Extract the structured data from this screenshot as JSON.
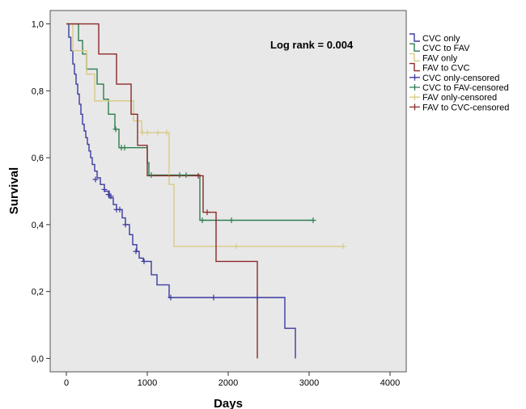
{
  "chart_data": {
    "type": "line",
    "xlabel": "Days",
    "ylabel": "Survival",
    "xlim": [
      -200,
      4200
    ],
    "ylim": [
      -0.04,
      1.04
    ],
    "xticks": [
      0,
      1000,
      2000,
      3000,
      4000
    ],
    "xtick_labels": [
      "0",
      "1000",
      "2000",
      "3000",
      "4000"
    ],
    "yticks": [
      0.0,
      0.2,
      0.4,
      0.6,
      0.8,
      1.0
    ],
    "ytick_labels": [
      "0,0",
      "0,2",
      "0,4",
      "0,6",
      "0,8",
      "1,0"
    ],
    "annotation": "Log rank = 0.004",
    "legend_position": "right",
    "grid": false,
    "background": "#e8e8e8",
    "series": [
      {
        "name": "CVC only",
        "color": "#3b3ba0",
        "steps": [
          [
            0,
            1.0
          ],
          [
            30,
            0.96
          ],
          [
            55,
            0.92
          ],
          [
            80,
            0.88
          ],
          [
            100,
            0.85
          ],
          [
            120,
            0.82
          ],
          [
            140,
            0.79
          ],
          [
            160,
            0.76
          ],
          [
            180,
            0.73
          ],
          [
            200,
            0.7
          ],
          [
            220,
            0.68
          ],
          [
            240,
            0.66
          ],
          [
            260,
            0.64
          ],
          [
            280,
            0.62
          ],
          [
            300,
            0.6
          ],
          [
            320,
            0.58
          ],
          [
            350,
            0.56
          ],
          [
            380,
            0.54
          ],
          [
            420,
            0.52
          ],
          [
            470,
            0.5
          ],
          [
            530,
            0.48
          ],
          [
            580,
            0.46
          ],
          [
            620,
            0.445
          ],
          [
            690,
            0.42
          ],
          [
            730,
            0.4
          ],
          [
            780,
            0.37
          ],
          [
            820,
            0.34
          ],
          [
            870,
            0.32
          ],
          [
            900,
            0.3
          ],
          [
            950,
            0.29
          ],
          [
            1050,
            0.25
          ],
          [
            1120,
            0.22
          ],
          [
            1270,
            0.182
          ],
          [
            2700,
            0.09
          ],
          [
            2830,
            0.0
          ]
        ],
        "end": 2830
      },
      {
        "name": "CVC to FAV",
        "color": "#2e7d4f",
        "steps": [
          [
            0,
            1.0
          ],
          [
            150,
            0.95
          ],
          [
            200,
            0.91
          ],
          [
            250,
            0.865
          ],
          [
            380,
            0.82
          ],
          [
            460,
            0.775
          ],
          [
            520,
            0.73
          ],
          [
            600,
            0.685
          ],
          [
            650,
            0.63
          ],
          [
            1000,
            0.585
          ],
          [
            1020,
            0.548
          ],
          [
            1650,
            0.413
          ]
        ],
        "end": 3050
      },
      {
        "name": "FAV only",
        "color": "#d8cb86",
        "steps": [
          [
            0,
            1.0
          ],
          [
            80,
            0.92
          ],
          [
            250,
            0.85
          ],
          [
            350,
            0.77
          ],
          [
            830,
            0.71
          ],
          [
            930,
            0.675
          ],
          [
            1270,
            0.52
          ],
          [
            1330,
            0.335
          ]
        ],
        "end": 3420
      },
      {
        "name": "FAV to CVC",
        "color": "#8b2a2a",
        "steps": [
          [
            0,
            1.0
          ],
          [
            200,
            1.0
          ],
          [
            400,
            0.91
          ],
          [
            620,
            0.82
          ],
          [
            800,
            0.73
          ],
          [
            880,
            0.637
          ],
          [
            1000,
            0.546
          ],
          [
            1690,
            0.437
          ],
          [
            1850,
            0.29
          ],
          [
            2360,
            0.0
          ]
        ],
        "end": 2360
      }
    ],
    "censored": [
      {
        "name": "CVC only-censored",
        "color": "#3b3ba0",
        "points": [
          [
            360,
            0.535
          ],
          [
            470,
            0.505
          ],
          [
            520,
            0.49
          ],
          [
            550,
            0.485
          ],
          [
            620,
            0.445
          ],
          [
            660,
            0.445
          ],
          [
            730,
            0.4
          ],
          [
            860,
            0.32
          ],
          [
            960,
            0.29
          ],
          [
            1290,
            0.182
          ],
          [
            1820,
            0.182
          ],
          [
            2360,
            0.182
          ]
        ]
      },
      {
        "name": "CVC to FAV-censored",
        "color": "#2e7d4f",
        "points": [
          [
            610,
            0.685
          ],
          [
            680,
            0.63
          ],
          [
            720,
            0.63
          ],
          [
            1050,
            0.548
          ],
          [
            1400,
            0.548
          ],
          [
            1480,
            0.548
          ],
          [
            1680,
            0.413
          ],
          [
            2040,
            0.413
          ],
          [
            3050,
            0.413
          ]
        ]
      },
      {
        "name": "FAV only-censored",
        "color": "#d8cb86",
        "points": [
          [
            940,
            0.675
          ],
          [
            1000,
            0.675
          ],
          [
            1130,
            0.675
          ],
          [
            1240,
            0.675
          ],
          [
            2100,
            0.335
          ],
          [
            3420,
            0.335
          ]
        ]
      },
      {
        "name": "FAV to CVC-censored",
        "color": "#8b2a2a",
        "points": [
          [
            1630,
            0.546
          ],
          [
            1740,
            0.437
          ]
        ]
      }
    ],
    "legend": [
      {
        "label": "CVC only",
        "color": "#3b3ba0",
        "marker": "step"
      },
      {
        "label": "CVC to FAV",
        "color": "#2e7d4f",
        "marker": "step"
      },
      {
        "label": "FAV only",
        "color": "#d8cb86",
        "marker": "step"
      },
      {
        "label": "FAV to CVC",
        "color": "#8b2a2a",
        "marker": "step"
      },
      {
        "label": "CVC only-censored",
        "color": "#3b3ba0",
        "marker": "plus"
      },
      {
        "label": "CVC to FAV-censored",
        "color": "#2e7d4f",
        "marker": "plus"
      },
      {
        "label": "FAV only-censored",
        "color": "#d8cb86",
        "marker": "plus"
      },
      {
        "label": "FAV to CVC-censored",
        "color": "#8b2a2a",
        "marker": "plus"
      }
    ]
  }
}
